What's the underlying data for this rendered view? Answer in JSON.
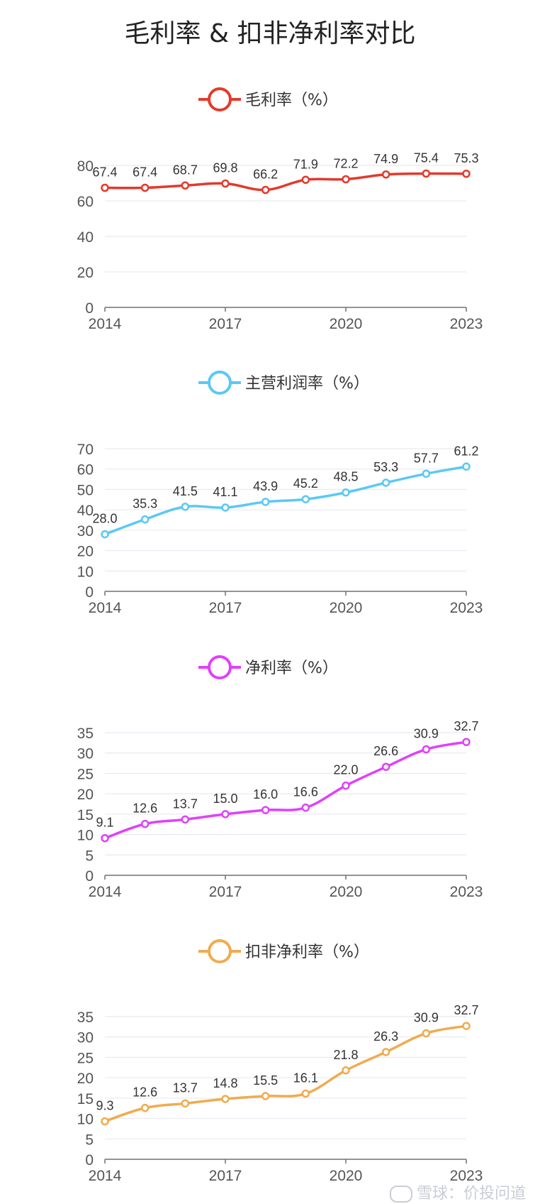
{
  "title": "毛利率 & 扣非净利率对比",
  "watermark": "雪球：价投问道",
  "chart_data": [
    {
      "type": "line",
      "series": [
        {
          "name": "毛利率（%）",
          "color": "#e33a2b",
          "values": [
            67.4,
            67.4,
            68.7,
            69.8,
            66.2,
            71.9,
            72.2,
            74.9,
            75.4,
            75.3
          ]
        }
      ],
      "x": [
        2014,
        2015,
        2016,
        2017,
        2018,
        2019,
        2020,
        2021,
        2022,
        2023
      ],
      "xticks": [
        "2014",
        "2017",
        "2020",
        "2023"
      ],
      "yticks": [
        0,
        20,
        40,
        60,
        80
      ],
      "ylim": [
        0,
        80
      ],
      "grid": true,
      "legend": "top-center"
    },
    {
      "type": "line",
      "series": [
        {
          "name": "主营利润率（%）",
          "color": "#5bc8f5",
          "values": [
            28.0,
            35.3,
            41.5,
            41.1,
            43.9,
            45.2,
            48.5,
            53.3,
            57.7,
            61.2
          ]
        }
      ],
      "x": [
        2014,
        2015,
        2016,
        2017,
        2018,
        2019,
        2020,
        2021,
        2022,
        2023
      ],
      "xticks": [
        "2014",
        "2017",
        "2020",
        "2023"
      ],
      "yticks": [
        0,
        10,
        20,
        30,
        40,
        50,
        60,
        70
      ],
      "ylim": [
        0,
        70
      ],
      "grid": true,
      "legend": "top-center"
    },
    {
      "type": "line",
      "series": [
        {
          "name": "净利率（%）",
          "color": "#e040fb",
          "values": [
            9.1,
            12.6,
            13.7,
            15.0,
            16.0,
            16.6,
            22.0,
            26.6,
            30.9,
            32.7
          ]
        }
      ],
      "x": [
        2014,
        2015,
        2016,
        2017,
        2018,
        2019,
        2020,
        2021,
        2022,
        2023
      ],
      "xticks": [
        "2014",
        "2017",
        "2020",
        "2023"
      ],
      "yticks": [
        0,
        5,
        10,
        15,
        20,
        25,
        30,
        35
      ],
      "ylim": [
        0,
        35
      ],
      "grid": true,
      "legend": "top-center"
    },
    {
      "type": "line",
      "series": [
        {
          "name": "扣非净利率（%）",
          "color": "#f0ab4f",
          "values": [
            9.3,
            12.6,
            13.7,
            14.8,
            15.5,
            16.1,
            21.8,
            26.3,
            30.9,
            32.7
          ]
        }
      ],
      "x": [
        2014,
        2015,
        2016,
        2017,
        2018,
        2019,
        2020,
        2021,
        2022,
        2023
      ],
      "xticks": [
        "2014",
        "2017",
        "2020",
        "2023"
      ],
      "yticks": [
        0,
        5,
        10,
        15,
        20,
        25,
        30,
        35
      ],
      "ylim": [
        0,
        35
      ],
      "grid": true,
      "legend": "top-center"
    }
  ]
}
